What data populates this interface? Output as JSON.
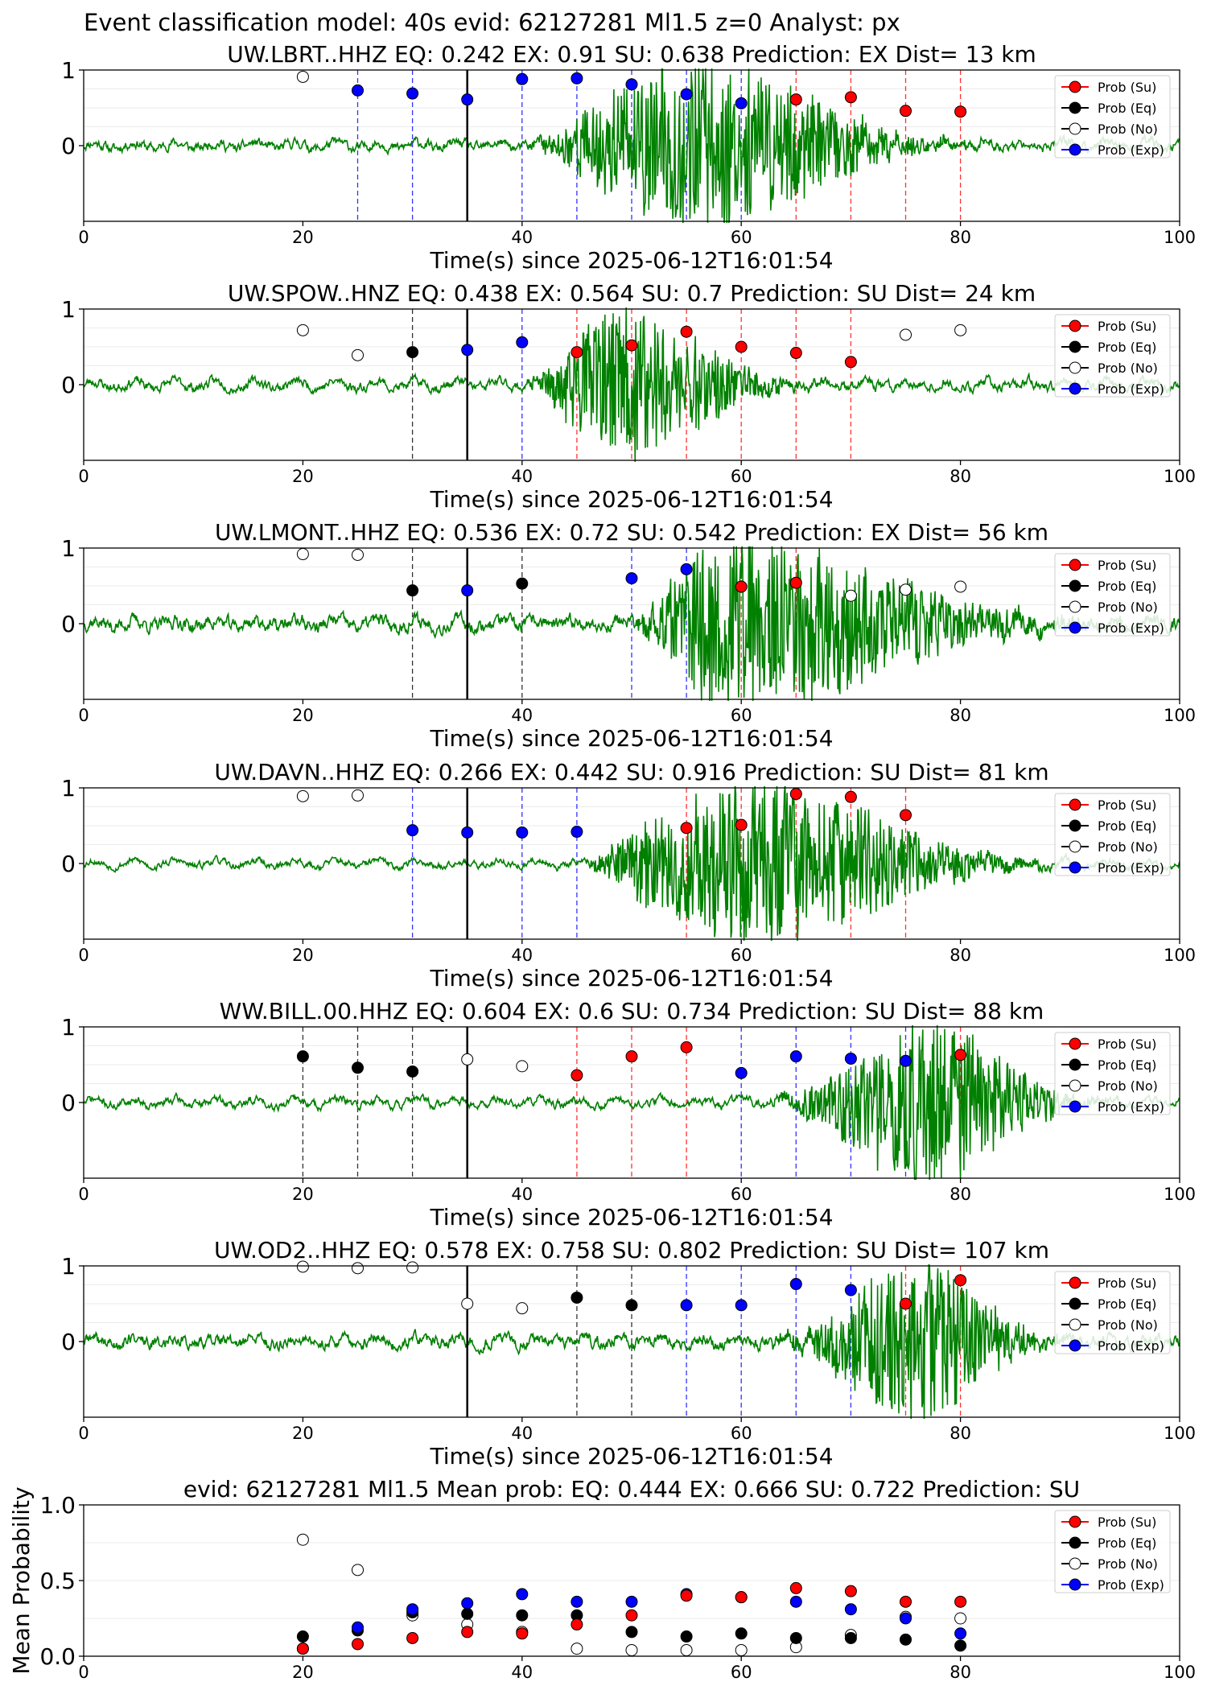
{
  "figure_title": "Event classification model: 40s evid: 62127281 Ml1.5 z=0 Analyst: px",
  "colors": {
    "su": "#ff0000",
    "eq": "#000000",
    "no": "#ffffff",
    "exp": "#0000ff",
    "trace": "#008000"
  },
  "legend": [
    "Prob (Su)",
    "Prob (Eq)",
    "Prob (No)",
    "Prob (Exp)"
  ],
  "chart_data": [
    {
      "type": "scatter",
      "title": "UW.LBRT..HHZ   EQ: 0.242  EX: 0.91  SU: 0.638   Prediction: EX    Dist= 13 km",
      "xlabel": "Time(s) since 2025-06-12T16:01:54",
      "xlim": [
        0,
        100
      ],
      "ylim": [
        -1,
        1
      ],
      "yticks": [
        "0",
        "1"
      ],
      "xticks": [
        "0",
        "20",
        "40",
        "60",
        "80",
        "100"
      ],
      "origin_time": 35,
      "trace": {
        "amp": 0.35,
        "onset": 40,
        "peak": 57,
        "peak_amp": 1.0,
        "decay": 9,
        "seed": 11
      },
      "points": [
        {
          "t": 20,
          "p": 0.91,
          "cls": "no"
        },
        {
          "t": 25,
          "p": 0.73,
          "cls": "exp"
        },
        {
          "t": 30,
          "p": 0.69,
          "cls": "exp"
        },
        {
          "t": 35,
          "p": 0.61,
          "cls": "exp"
        },
        {
          "t": 40,
          "p": 0.88,
          "cls": "exp"
        },
        {
          "t": 45,
          "p": 0.89,
          "cls": "exp"
        },
        {
          "t": 50,
          "p": 0.81,
          "cls": "exp"
        },
        {
          "t": 55,
          "p": 0.68,
          "cls": "exp"
        },
        {
          "t": 60,
          "p": 0.56,
          "cls": "exp"
        },
        {
          "t": 65,
          "p": 0.61,
          "cls": "su"
        },
        {
          "t": 70,
          "p": 0.64,
          "cls": "su"
        },
        {
          "t": 75,
          "p": 0.46,
          "cls": "su"
        },
        {
          "t": 80,
          "p": 0.45,
          "cls": "su"
        }
      ]
    },
    {
      "type": "scatter",
      "title": "UW.SPOW..HNZ   EQ: 0.438  EX: 0.564  SU: 0.7   Prediction: SU    Dist= 24 km",
      "xlabel": "Time(s) since 2025-06-12T16:01:54",
      "xlim": [
        0,
        100
      ],
      "ylim": [
        -1,
        1
      ],
      "yticks": [
        "0",
        "1"
      ],
      "xticks": [
        "0",
        "20",
        "40",
        "60",
        "80",
        "100"
      ],
      "origin_time": 35,
      "trace": {
        "amp": 0.35,
        "onset": 40,
        "peak": 50,
        "peak_amp": 0.95,
        "decay": 6,
        "seed": 23
      },
      "points": [
        {
          "t": 20,
          "p": 0.72,
          "cls": "no"
        },
        {
          "t": 25,
          "p": 0.39,
          "cls": "no"
        },
        {
          "t": 30,
          "p": 0.43,
          "cls": "eq"
        },
        {
          "t": 35,
          "p": 0.46,
          "cls": "exp"
        },
        {
          "t": 40,
          "p": 0.56,
          "cls": "exp"
        },
        {
          "t": 45,
          "p": 0.43,
          "cls": "su"
        },
        {
          "t": 50,
          "p": 0.52,
          "cls": "su"
        },
        {
          "t": 55,
          "p": 0.7,
          "cls": "su"
        },
        {
          "t": 60,
          "p": 0.5,
          "cls": "su"
        },
        {
          "t": 65,
          "p": 0.42,
          "cls": "su"
        },
        {
          "t": 70,
          "p": 0.3,
          "cls": "su"
        },
        {
          "t": 75,
          "p": 0.66,
          "cls": "no"
        },
        {
          "t": 80,
          "p": 0.72,
          "cls": "no"
        }
      ]
    },
    {
      "type": "scatter",
      "title": "UW.LMONT..HHZ   EQ: 0.536  EX: 0.72  SU: 0.542   Prediction: EX    Dist= 56 km",
      "xlabel": "Time(s) since 2025-06-12T16:01:54",
      "xlim": [
        0,
        100
      ],
      "ylim": [
        -1,
        1
      ],
      "yticks": [
        "0",
        "1"
      ],
      "xticks": [
        "0",
        "20",
        "40",
        "60",
        "80",
        "100"
      ],
      "origin_time": 35,
      "trace": {
        "amp": 0.5,
        "onset": 50,
        "peak": 61,
        "peak_amp": 1.0,
        "decay": 12,
        "seed": 37
      },
      "points": [
        {
          "t": 20,
          "p": 0.92,
          "cls": "no"
        },
        {
          "t": 25,
          "p": 0.91,
          "cls": "no"
        },
        {
          "t": 30,
          "p": 0.44,
          "cls": "eq"
        },
        {
          "t": 35,
          "p": 0.44,
          "cls": "exp"
        },
        {
          "t": 40,
          "p": 0.53,
          "cls": "eq"
        },
        {
          "t": 50,
          "p": 0.6,
          "cls": "exp"
        },
        {
          "t": 55,
          "p": 0.72,
          "cls": "exp"
        },
        {
          "t": 60,
          "p": 0.49,
          "cls": "su"
        },
        {
          "t": 65,
          "p": 0.54,
          "cls": "su"
        },
        {
          "t": 70,
          "p": 0.37,
          "cls": "no"
        },
        {
          "t": 75,
          "p": 0.45,
          "cls": "no"
        },
        {
          "t": 80,
          "p": 0.49,
          "cls": "no"
        }
      ]
    },
    {
      "type": "scatter",
      "title": "UW.DAVN..HHZ   EQ: 0.266  EX: 0.442  SU: 0.916   Prediction: SU    Dist= 81 km",
      "xlabel": "Time(s) since 2025-06-12T16:01:54",
      "xlim": [
        0,
        100
      ],
      "ylim": [
        -1,
        1
      ],
      "yticks": [
        "0",
        "1"
      ],
      "xticks": [
        "0",
        "20",
        "40",
        "60",
        "80",
        "100"
      ],
      "origin_time": 35,
      "trace": {
        "amp": 0.25,
        "onset": 45,
        "peak": 62,
        "peak_amp": 1.0,
        "decay": 10,
        "seed": 53
      },
      "points": [
        {
          "t": 20,
          "p": 0.89,
          "cls": "no"
        },
        {
          "t": 25,
          "p": 0.9,
          "cls": "no"
        },
        {
          "t": 30,
          "p": 0.44,
          "cls": "exp"
        },
        {
          "t": 35,
          "p": 0.41,
          "cls": "exp"
        },
        {
          "t": 40,
          "p": 0.41,
          "cls": "exp"
        },
        {
          "t": 45,
          "p": 0.42,
          "cls": "exp"
        },
        {
          "t": 55,
          "p": 0.47,
          "cls": "su"
        },
        {
          "t": 60,
          "p": 0.51,
          "cls": "su"
        },
        {
          "t": 65,
          "p": 0.92,
          "cls": "su"
        },
        {
          "t": 70,
          "p": 0.88,
          "cls": "su"
        },
        {
          "t": 75,
          "p": 0.64,
          "cls": "su"
        }
      ]
    },
    {
      "type": "scatter",
      "title": "WW.BILL.00.HHZ   EQ: 0.604  EX: 0.6  SU: 0.734   Prediction: SU    Dist= 88 km",
      "xlabel": "Time(s) since 2025-06-12T16:01:54",
      "xlim": [
        0,
        100
      ],
      "ylim": [
        -1,
        1
      ],
      "yticks": [
        "0",
        "1"
      ],
      "xticks": [
        "0",
        "20",
        "40",
        "60",
        "80",
        "100"
      ],
      "origin_time": 35,
      "trace": {
        "amp": 0.3,
        "onset": 60,
        "peak": 77,
        "peak_amp": 1.0,
        "decay": 6,
        "seed": 71
      },
      "points": [
        {
          "t": 20,
          "p": 0.61,
          "cls": "eq"
        },
        {
          "t": 25,
          "p": 0.46,
          "cls": "eq"
        },
        {
          "t": 30,
          "p": 0.41,
          "cls": "eq"
        },
        {
          "t": 35,
          "p": 0.57,
          "cls": "no"
        },
        {
          "t": 40,
          "p": 0.48,
          "cls": "no"
        },
        {
          "t": 45,
          "p": 0.36,
          "cls": "su"
        },
        {
          "t": 50,
          "p": 0.61,
          "cls": "su"
        },
        {
          "t": 55,
          "p": 0.73,
          "cls": "su"
        },
        {
          "t": 60,
          "p": 0.39,
          "cls": "exp"
        },
        {
          "t": 65,
          "p": 0.61,
          "cls": "exp"
        },
        {
          "t": 70,
          "p": 0.58,
          "cls": "exp"
        },
        {
          "t": 75,
          "p": 0.55,
          "cls": "exp"
        },
        {
          "t": 80,
          "p": 0.63,
          "cls": "su"
        }
      ]
    },
    {
      "type": "scatter",
      "title": "UW.OD2..HHZ   EQ: 0.578  EX: 0.758  SU: 0.802   Prediction: SU    Dist= 107 km",
      "xlabel": "Time(s) since 2025-06-12T16:01:54",
      "xlim": [
        0,
        100
      ],
      "ylim": [
        -1,
        1
      ],
      "yticks": [
        "0",
        "1"
      ],
      "xticks": [
        "0",
        "20",
        "40",
        "60",
        "80",
        "100"
      ],
      "origin_time": 35,
      "trace": {
        "amp": 0.45,
        "onset": 55,
        "peak": 76,
        "peak_amp": 1.0,
        "decay": 5,
        "seed": 89
      },
      "points": [
        {
          "t": 20,
          "p": 0.99,
          "cls": "no"
        },
        {
          "t": 25,
          "p": 0.97,
          "cls": "no"
        },
        {
          "t": 30,
          "p": 0.98,
          "cls": "no"
        },
        {
          "t": 35,
          "p": 0.5,
          "cls": "no"
        },
        {
          "t": 40,
          "p": 0.44,
          "cls": "no"
        },
        {
          "t": 45,
          "p": 0.58,
          "cls": "eq"
        },
        {
          "t": 50,
          "p": 0.48,
          "cls": "eq"
        },
        {
          "t": 55,
          "p": 0.48,
          "cls": "exp"
        },
        {
          "t": 60,
          "p": 0.48,
          "cls": "exp"
        },
        {
          "t": 65,
          "p": 0.76,
          "cls": "exp"
        },
        {
          "t": 70,
          "p": 0.68,
          "cls": "exp"
        },
        {
          "t": 75,
          "p": 0.5,
          "cls": "su"
        },
        {
          "t": 80,
          "p": 0.81,
          "cls": "su"
        }
      ]
    },
    {
      "type": "scatter",
      "title": "evid: 62127281  Ml1.5   Mean prob:   EQ: 0.444  EX: 0.666  SU: 0.722   Prediction: SU",
      "ylabel": "Mean Probability",
      "xlim": [
        0,
        100
      ],
      "ylim": [
        0,
        1
      ],
      "yticks": [
        "0.0",
        "0.5",
        "1.0"
      ],
      "xticks": [
        "0",
        "20",
        "40",
        "60",
        "80",
        "100"
      ],
      "times": [
        20,
        25,
        30,
        35,
        40,
        45,
        50,
        55,
        60,
        65,
        70,
        75,
        80
      ],
      "series": [
        {
          "cls": "no",
          "name": "Prob (No)",
          "values": [
            0.77,
            0.57,
            0.27,
            0.21,
            0.16,
            0.05,
            0.04,
            0.04,
            0.04,
            0.06,
            0.14,
            0.26,
            0.25
          ]
        },
        {
          "cls": "eq",
          "name": "Prob (Eq)",
          "values": [
            0.13,
            0.17,
            0.29,
            0.28,
            0.27,
            0.27,
            0.16,
            0.13,
            0.15,
            0.12,
            0.12,
            0.11,
            0.07
          ]
        },
        {
          "cls": "exp",
          "name": "Prob (Exp)",
          "values": [
            0.05,
            0.19,
            0.31,
            0.35,
            0.41,
            0.36,
            0.36,
            0.41,
            0.39,
            0.36,
            0.31,
            0.25,
            0.15
          ]
        },
        {
          "cls": "su",
          "name": "Prob (Su)",
          "values": [
            0.05,
            0.08,
            0.12,
            0.16,
            0.15,
            0.21,
            0.27,
            0.4,
            0.39,
            0.45,
            0.43,
            0.36,
            0.36
          ]
        }
      ]
    }
  ]
}
